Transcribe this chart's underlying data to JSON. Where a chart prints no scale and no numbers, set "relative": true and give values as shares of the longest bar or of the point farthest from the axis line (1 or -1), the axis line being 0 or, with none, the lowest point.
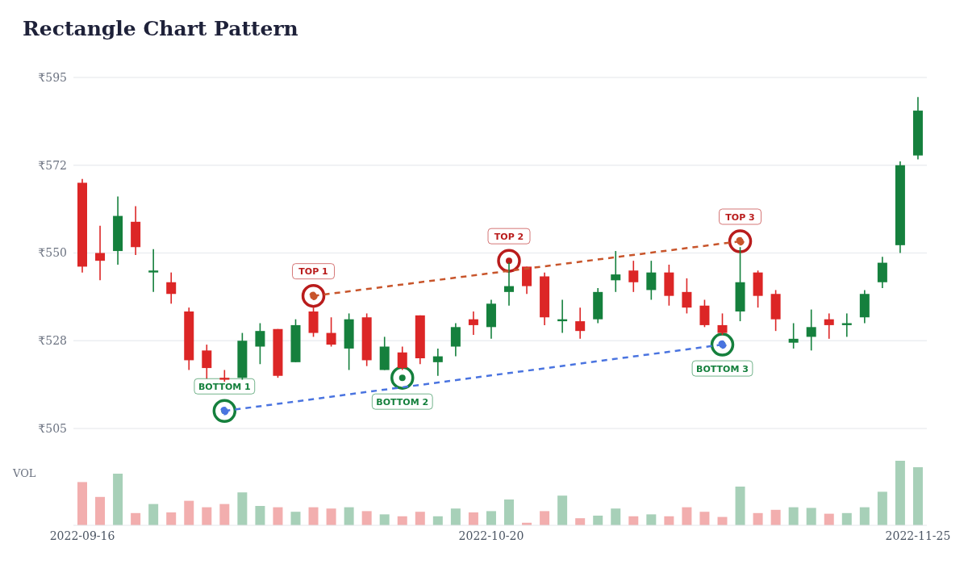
{
  "chart_data": [
    {
      "type": "candlestick",
      "title": "Rectangle Chart Pattern",
      "categories": [
        "2022-09-16",
        null,
        null,
        null,
        null,
        null,
        null,
        null,
        null,
        null,
        null,
        null,
        null,
        null,
        null,
        null,
        null,
        null,
        null,
        null,
        null,
        null,
        null,
        "2022-10-20",
        null,
        null,
        null,
        null,
        null,
        null,
        null,
        null,
        null,
        null,
        null,
        null,
        null,
        null,
        null,
        null,
        null,
        null,
        null,
        null,
        null,
        null,
        null,
        "2022-11-25"
      ],
      "ohlc": [
        [
          568,
          569,
          545,
          546.5
        ],
        [
          550,
          557,
          543,
          548
        ],
        [
          550.5,
          564.5,
          547,
          559.5
        ],
        [
          558,
          562,
          549.5,
          551.5
        ],
        [
          545,
          551,
          540,
          545.5
        ],
        [
          542.5,
          545,
          537,
          539.5
        ],
        [
          535,
          536,
          520,
          522.5
        ],
        [
          525,
          526.5,
          517.5,
          520.5
        ],
        [
          518,
          520,
          517,
          517.5
        ],
        [
          518,
          529.5,
          517.5,
          527.5
        ],
        [
          526,
          532,
          521.5,
          530
        ],
        [
          530.5,
          530.5,
          518,
          518.5
        ],
        [
          522,
          533,
          522,
          531.5
        ],
        [
          535,
          536,
          528.5,
          529.5
        ],
        [
          529.5,
          533.5,
          526,
          526.5
        ],
        [
          525.5,
          534.5,
          520,
          533
        ],
        [
          533.5,
          534.5,
          521,
          522.5
        ],
        [
          520,
          528.5,
          520,
          526
        ],
        [
          524.5,
          526,
          520,
          520.5
        ],
        [
          534,
          534,
          521.5,
          523
        ],
        [
          522,
          525.5,
          518.5,
          523.5
        ],
        [
          526,
          532,
          523.5,
          531
        ],
        [
          533,
          535,
          529,
          531.5
        ],
        [
          531,
          538,
          528,
          537
        ],
        [
          540,
          547.5,
          536.5,
          541.5
        ],
        [
          546.5,
          546.5,
          539.5,
          541.5
        ],
        [
          544,
          545,
          531.5,
          533.5
        ],
        [
          532.5,
          538,
          529.5,
          533
        ],
        [
          532.5,
          536,
          528,
          530
        ],
        [
          533,
          541,
          532,
          540
        ],
        [
          543,
          550.5,
          540,
          544.5
        ],
        [
          545.5,
          548,
          540,
          542.5
        ],
        [
          540.5,
          548,
          538,
          545
        ],
        [
          545,
          547,
          536.5,
          539
        ],
        [
          540,
          543.5,
          534.5,
          536
        ],
        [
          536.5,
          538,
          531,
          531.5
        ],
        [
          531.5,
          534.5,
          529,
          529.5
        ],
        [
          535,
          551.5,
          532.5,
          542.5
        ],
        [
          545,
          545.5,
          536,
          539
        ],
        [
          539.5,
          540.5,
          530,
          533
        ],
        [
          527,
          532,
          525.5,
          528
        ],
        [
          528.5,
          535.5,
          525,
          531
        ],
        [
          533,
          534.5,
          528,
          531.5
        ],
        [
          531.5,
          534.5,
          528.5,
          532
        ],
        [
          533.5,
          540.5,
          532,
          539.5
        ],
        [
          542.5,
          549,
          541,
          547.5
        ],
        [
          552,
          573.5,
          550,
          572.5
        ],
        [
          575,
          590,
          574,
          586.5
        ]
      ],
      "colors": [
        "#dc2626",
        "#dc2626",
        "#15803d",
        "#dc2626",
        "#15803d",
        "#dc2626",
        "#dc2626",
        "#dc2626",
        "#dc2626",
        "#15803d",
        "#15803d",
        "#dc2626",
        "#15803d",
        "#dc2626",
        "#dc2626",
        "#15803d",
        "#dc2626",
        "#15803d",
        "#dc2626",
        "#dc2626",
        "#15803d",
        "#15803d",
        "#dc2626",
        "#15803d",
        "#15803d",
        "#dc2626",
        "#dc2626",
        "#15803d",
        "#dc2626",
        "#15803d",
        "#15803d",
        "#dc2626",
        "#15803d",
        "#dc2626",
        "#dc2626",
        "#dc2626",
        "#dc2626",
        "#15803d",
        "#dc2626",
        "#dc2626",
        "#15803d",
        "#15803d",
        "#dc2626",
        "#15803d",
        "#15803d",
        "#15803d",
        "#15803d",
        "#15803d"
      ],
      "series": [
        {
          "type": "line",
          "color": "#c8552b",
          "line_style": "dashed",
          "marker": "circle",
          "values": [
            null,
            null,
            null,
            null,
            null,
            null,
            null,
            null,
            null,
            null,
            null,
            null,
            null,
            539,
            null,
            null,
            null,
            null,
            null,
            null,
            null,
            null,
            null,
            null,
            null,
            null,
            null,
            null,
            null,
            null,
            null,
            null,
            null,
            null,
            null,
            null,
            null,
            553,
            null,
            null,
            null,
            null,
            null,
            null,
            null,
            null,
            null,
            null
          ]
        },
        {
          "type": "line",
          "color": "#4a74e0",
          "line_style": "dashed",
          "marker": "circle",
          "values": [
            null,
            null,
            null,
            null,
            null,
            null,
            null,
            null,
            509.5,
            null,
            null,
            null,
            null,
            null,
            null,
            null,
            null,
            null,
            null,
            null,
            null,
            null,
            null,
            null,
            null,
            null,
            null,
            null,
            null,
            null,
            null,
            null,
            null,
            null,
            null,
            null,
            526.5,
            null,
            null,
            null,
            null,
            null,
            null,
            null,
            null,
            null,
            null,
            null
          ]
        },
        {
          "type": "scatter",
          "color": "#b91c1c",
          "marker": "circle",
          "values": [
            null,
            null,
            null,
            null,
            null,
            null,
            null,
            null,
            null,
            null,
            null,
            null,
            null,
            539,
            null,
            null,
            null,
            null,
            null,
            null,
            null,
            null,
            null,
            null,
            548,
            null,
            null,
            null,
            null,
            null,
            null,
            null,
            null,
            null,
            null,
            null,
            null,
            553,
            null,
            null,
            null,
            null,
            null,
            null,
            null,
            null,
            null,
            null
          ],
          "value_labels": [
            null,
            null,
            null,
            null,
            null,
            null,
            null,
            null,
            null,
            null,
            null,
            null,
            null,
            "TOP 1",
            null,
            null,
            null,
            null,
            null,
            null,
            null,
            null,
            null,
            null,
            "TOP 2",
            null,
            null,
            null,
            null,
            null,
            null,
            null,
            null,
            null,
            null,
            null,
            null,
            "TOP 3",
            null,
            null,
            null,
            null,
            null,
            null,
            null,
            null,
            null,
            null
          ]
        },
        {
          "type": "scatter",
          "color": "#15803d",
          "marker": "circle",
          "values": [
            null,
            null,
            null,
            null,
            null,
            null,
            null,
            null,
            509.5,
            null,
            null,
            null,
            null,
            null,
            null,
            null,
            null,
            null,
            518,
            null,
            null,
            null,
            null,
            null,
            null,
            null,
            null,
            null,
            null,
            null,
            null,
            null,
            null,
            null,
            null,
            null,
            526.5,
            null,
            null,
            null,
            null,
            null,
            null,
            null,
            null,
            null,
            null,
            null
          ],
          "value_labels": [
            null,
            null,
            null,
            null,
            null,
            null,
            null,
            null,
            "BOTTOM 1",
            null,
            null,
            null,
            null,
            null,
            null,
            null,
            null,
            null,
            "BOTTOM 2",
            null,
            null,
            null,
            null,
            null,
            null,
            null,
            null,
            null,
            null,
            null,
            null,
            null,
            null,
            null,
            null,
            null,
            "BOTTOM 3",
            null,
            null,
            null,
            null,
            null,
            null,
            null,
            null,
            null,
            null,
            null
          ]
        }
      ],
      "ylim": [
        505,
        595
      ],
      "yticks": [
        {
          "value": 505,
          "label": "₹505"
        },
        {
          "value": 527.5,
          "label": "₹528"
        },
        {
          "value": 550,
          "label": "₹550"
        },
        {
          "value": 572.5,
          "label": "₹572"
        },
        {
          "value": 595,
          "label": "₹595"
        }
      ],
      "grid": "y",
      "tick_labels": "y"
    },
    {
      "type": "bar",
      "relative": true,
      "ylabel": "VOL",
      "categories": [
        "2022-09-16",
        null,
        null,
        null,
        null,
        null,
        null,
        null,
        null,
        null,
        null,
        null,
        null,
        null,
        null,
        null,
        null,
        null,
        null,
        null,
        null,
        null,
        null,
        "2022-10-20",
        null,
        null,
        null,
        null,
        null,
        null,
        null,
        null,
        null,
        null,
        null,
        null,
        null,
        null,
        null,
        null,
        null,
        null,
        null,
        null,
        null,
        null,
        null,
        "2022-11-25"
      ],
      "values": [
        0.67,
        0.44,
        0.8,
        0.19,
        0.33,
        0.2,
        0.38,
        0.28,
        0.33,
        0.51,
        0.3,
        0.28,
        0.21,
        0.28,
        0.26,
        0.28,
        0.22,
        0.17,
        0.14,
        0.21,
        0.14,
        0.26,
        0.2,
        0.22,
        0.4,
        0.04,
        0.22,
        0.46,
        0.11,
        0.15,
        0.26,
        0.14,
        0.17,
        0.14,
        0.28,
        0.21,
        0.13,
        0.6,
        0.19,
        0.24,
        0.28,
        0.27,
        0.18,
        0.19,
        0.28,
        0.52,
        1,
        0.9
      ],
      "colors": [
        "#f2aeae",
        "#f2aeae",
        "#a7d0b8",
        "#f2aeae",
        "#a7d0b8",
        "#f2aeae",
        "#f2aeae",
        "#f2aeae",
        "#f2aeae",
        "#a7d0b8",
        "#a7d0b8",
        "#f2aeae",
        "#a7d0b8",
        "#f2aeae",
        "#f2aeae",
        "#a7d0b8",
        "#f2aeae",
        "#a7d0b8",
        "#f2aeae",
        "#f2aeae",
        "#a7d0b8",
        "#a7d0b8",
        "#f2aeae",
        "#a7d0b8",
        "#a7d0b8",
        "#f2aeae",
        "#f2aeae",
        "#a7d0b8",
        "#f2aeae",
        "#a7d0b8",
        "#a7d0b8",
        "#f2aeae",
        "#a7d0b8",
        "#f2aeae",
        "#f2aeae",
        "#f2aeae",
        "#f2aeae",
        "#a7d0b8",
        "#f2aeae",
        "#f2aeae",
        "#a7d0b8",
        "#a7d0b8",
        "#f2aeae",
        "#a7d0b8",
        "#a7d0b8",
        "#a7d0b8",
        "#a7d0b8",
        "#a7d0b8"
      ]
    }
  ]
}
